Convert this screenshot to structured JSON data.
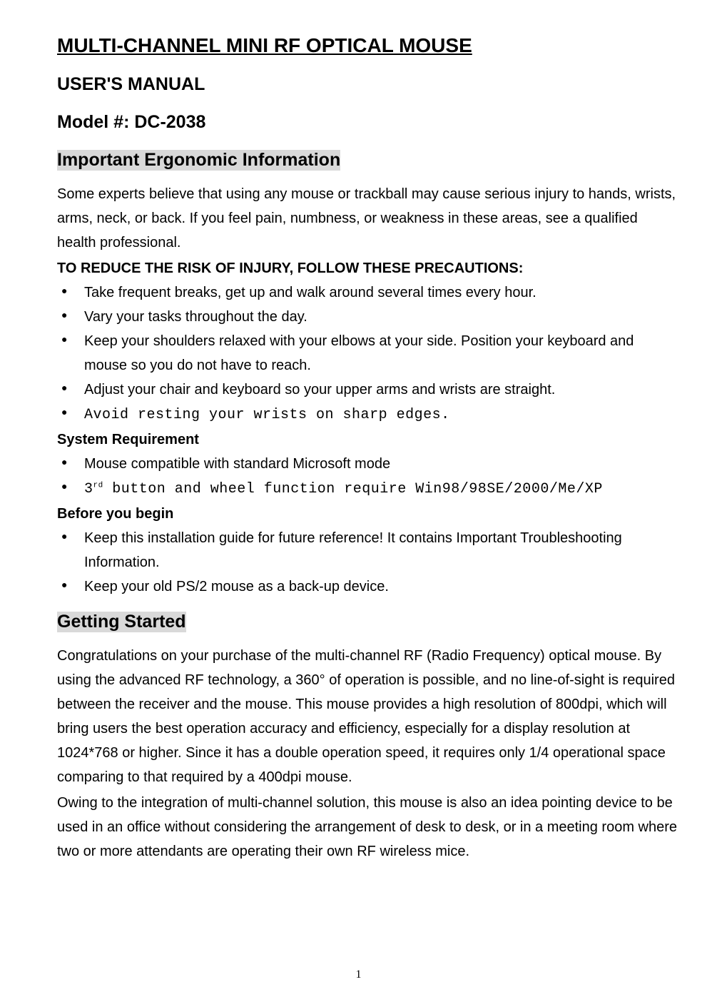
{
  "title": "MULTI-CHANNEL MINI RF OPTICAL MOUSE",
  "subtitle": "USER'S MANUAL",
  "model": "Model #: DC-2038",
  "sections": {
    "ergonomic": {
      "heading": "Important Ergonomic Information",
      "intro": "Some experts believe that using any mouse or trackball may cause serious injury to hands, wrists, arms, neck, or back. If you feel pain, numbness, or weakness in these areas, see a qualified health professional.",
      "precautions_heading": "TO REDUCE THE RISK OF INJURY, FOLLOW THESE PRECAUTIONS:",
      "precautions": [
        "Take frequent breaks, get up and walk around several times every hour.",
        "Vary your tasks throughout the day.",
        "Keep your shoulders relaxed with your elbows at your side.   Position your keyboard and mouse so you do not have to reach.",
        "Adjust your chair and keyboard so your upper arms and wrists are straight.",
        "Avoid resting your wrists on sharp edges."
      ]
    },
    "system_requirement": {
      "heading": "System Requirement",
      "items": [
        "Mouse compatible with standard Microsoft mode"
      ],
      "mono_item_prefix": "3",
      "mono_item_super": "rd",
      "mono_item_rest": " button and wheel function require Win98/98SE/2000/Me/XP"
    },
    "before_begin": {
      "heading": "Before you begin",
      "items": [
        "Keep this installation guide for future reference! It contains Important Troubleshooting Information.",
        "Keep your old PS/2 mouse as a back-up device."
      ]
    },
    "getting_started": {
      "heading": "Getting Started",
      "para1": "Congratulations on your purchase of the multi-channel RF (Radio Frequency) optical mouse. By using the advanced RF technology, a 360° of operation is possible, and no line-of-sight is required between the receiver and the mouse. This mouse provides a high resolution of 800dpi, which will bring users the best operation accuracy and efficiency, especially for a display resolution at 1024*768 or higher. Since it has a double operation speed, it requires only 1/4 operational space comparing to that required by a 400dpi mouse.",
      "para2": "Owing to the integration of multi-channel solution, this mouse is also an idea pointing device to be used in an office without considering the arrangement of desk to desk, or in a meeting room where two or more attendants are operating their own RF wireless mice."
    }
  },
  "page_number": "1",
  "colors": {
    "highlight_bg": "#d9d9d9",
    "text": "#000000",
    "page_bg": "#ffffff"
  }
}
